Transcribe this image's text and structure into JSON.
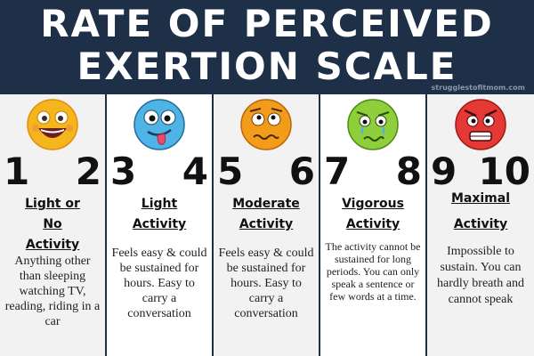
{
  "header": {
    "title_line1": "RATE OF PERCEIVED",
    "title_line2": "EXERTION SCALE",
    "site": "strugglestofitmom.com"
  },
  "columns": [
    {
      "num_a": "1",
      "num_b": "2",
      "cat_line1": "Light or",
      "cat_line2": "No",
      "cat_line3": "Activity",
      "description": "Anything other than sleeping watching TV, reading, riding in a car",
      "face_color": "#f5b51f"
    },
    {
      "num_a": "3",
      "num_b": "4",
      "cat_line1": "Light",
      "cat_line2": "Activity",
      "description": "Feels easy & could be sustained for hours. Easy to carry a conversation",
      "face_color": "#4fb3e6"
    },
    {
      "num_a": "5",
      "num_b": "6",
      "cat_line1": "Moderate",
      "cat_line2": "Activity",
      "description": "Feels easy & could be sustained for hours. Easy to carry a conversation",
      "face_color": "#f39c1a"
    },
    {
      "num_a": "7",
      "num_b": "8",
      "cat_line1": "Vigorous",
      "cat_line2": "Activity",
      "description": "The activity cannot be sustained for long periods. You can only speak a sentence or few words at a time.",
      "face_color": "#8fcf3c"
    },
    {
      "num_a": "9",
      "num_b": "10",
      "cat_line1": "Maximal",
      "cat_line2": "Activity",
      "description": "Impossible to sustain. You can hardly breath and cannot speak",
      "face_color": "#e53935"
    }
  ]
}
